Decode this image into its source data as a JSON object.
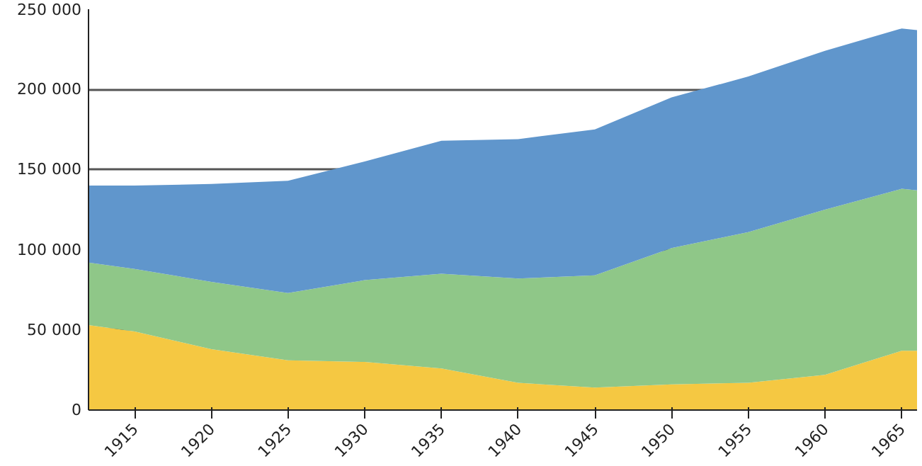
{
  "chart_data": {
    "type": "area",
    "stacked": true,
    "x": [
      1912,
      1915,
      1920,
      1925,
      1930,
      1935,
      1940,
      1945,
      1950,
      1955,
      1960,
      1965,
      1966
    ],
    "series": [
      {
        "color": "#f5c842",
        "values": [
          53000,
          49000,
          38000,
          31000,
          30000,
          26000,
          17000,
          14000,
          16000,
          17000,
          22000,
          37000,
          37000
        ]
      },
      {
        "color": "#8fc788",
        "values": [
          39000,
          39000,
          42000,
          42000,
          51000,
          59000,
          65000,
          70000,
          85000,
          94000,
          103000,
          101000,
          100000
        ]
      },
      {
        "color": "#6096cc",
        "values": [
          48000,
          52000,
          61000,
          70000,
          74000,
          83000,
          87000,
          91000,
          94000,
          97000,
          99000,
          100000,
          100000
        ]
      }
    ],
    "xlim": [
      1912,
      1966
    ],
    "xticks": [
      1915,
      1920,
      1925,
      1930,
      1935,
      1940,
      1945,
      1950,
      1955,
      1960,
      1965
    ],
    "ylim": [
      0,
      250000
    ],
    "yticks": [
      {
        "value": 0,
        "label": "0"
      },
      {
        "value": 50000,
        "label": "50 000"
      },
      {
        "value": 100000,
        "label": "100 000"
      },
      {
        "value": 150000,
        "label": "150 000"
      },
      {
        "value": 200000,
        "label": "200 000"
      },
      {
        "value": 250000,
        "label": "250 000"
      }
    ],
    "grid": "y"
  }
}
